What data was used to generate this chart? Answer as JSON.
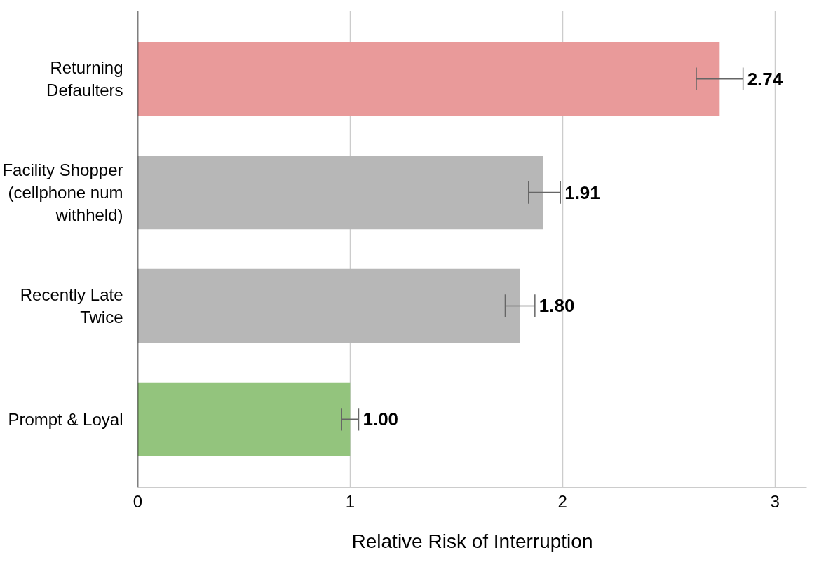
{
  "chart_data": {
    "type": "bar",
    "orientation": "horizontal",
    "xlabel": "Relative Risk of Interruption",
    "categories": [
      "Returning\nDefaulters",
      "Facility Shopper\n(cellphone num\nwithheld)",
      "Recently Late\nTwice",
      "Prompt & Loyal"
    ],
    "values": [
      2.74,
      1.91,
      1.8,
      1.0
    ],
    "colors": [
      "#e99a9a",
      "#b7b7b7",
      "#b7b7b7",
      "#93c47d"
    ],
    "errors": [
      [
        2.63,
        2.85
      ],
      [
        1.84,
        1.99
      ],
      [
        1.73,
        1.87
      ],
      [
        0.96,
        1.04
      ]
    ],
    "value_labels": [
      "2.74",
      "1.91",
      "1.80",
      "1.00"
    ],
    "xlim": [
      0,
      3.15
    ],
    "xticks": [
      0,
      1,
      2,
      3
    ],
    "grid": "x"
  }
}
